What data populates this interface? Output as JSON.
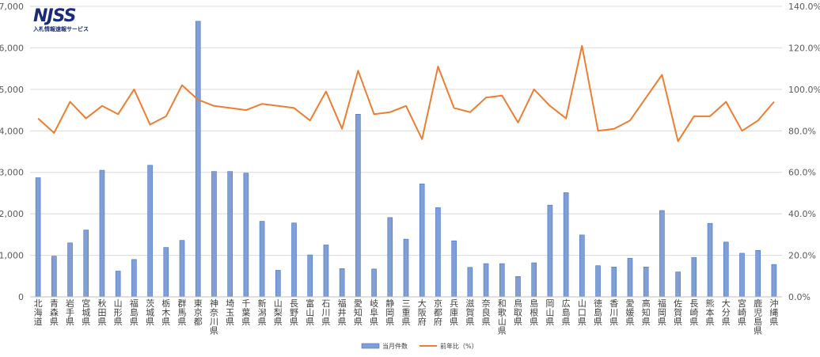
{
  "logo": {
    "text": "NJSS",
    "subtitle": "入札情報速報サービス",
    "colors": {
      "primary": "#1a2b78",
      "accent": "#c00000"
    }
  },
  "legend": {
    "bar_label": "当月件数",
    "line_label": "前年比（%）"
  },
  "colors": {
    "bar_fill": "#7f9fd6",
    "bar_stroke": "#4472c4",
    "line": "#ed7d31",
    "grid": "#d9d9d9"
  },
  "chart_data": {
    "type": "bar",
    "categories": [
      "北海道",
      "青森県",
      "岩手県",
      "宮城県",
      "秋田県",
      "山形県",
      "福島県",
      "茨城県",
      "栃木県",
      "群馬県",
      "東京都",
      "神奈川県",
      "埼玉県",
      "千葉県",
      "新潟県",
      "山梨県",
      "長野県",
      "富山県",
      "石川県",
      "福井県",
      "愛知県",
      "岐阜県",
      "静岡県",
      "三重県",
      "大阪府",
      "京都府",
      "兵庫県",
      "滋賀県",
      "奈良県",
      "和歌山県",
      "鳥取県",
      "島根県",
      "岡山県",
      "広島県",
      "山口県",
      "徳島県",
      "香川県",
      "愛媛県",
      "高知県",
      "福岡県",
      "佐賀県",
      "長崎県",
      "熊本県",
      "大分県",
      "宮崎県",
      "鹿児島県",
      "沖縄県"
    ],
    "series": [
      {
        "name": "当月件数",
        "type": "bar",
        "axis": "left",
        "values": [
          2870,
          980,
          1300,
          1610,
          3050,
          620,
          900,
          3170,
          1190,
          1360,
          6640,
          3020,
          3020,
          2980,
          1820,
          640,
          1780,
          1010,
          1250,
          680,
          4400,
          670,
          1910,
          1390,
          2720,
          2150,
          1350,
          710,
          800,
          800,
          490,
          820,
          2210,
          2510,
          1490,
          750,
          720,
          930,
          720,
          2080,
          600,
          950,
          1770,
          1320,
          1050,
          1120,
          780
        ]
      },
      {
        "name": "前年比（%）",
        "type": "line",
        "axis": "right",
        "values": [
          86,
          79,
          94,
          86,
          92,
          88,
          100,
          83,
          87,
          102,
          95,
          92,
          91,
          90,
          93,
          92,
          91,
          85,
          99,
          81,
          109,
          88,
          89,
          92,
          76,
          111,
          91,
          89,
          96,
          97,
          84,
          100,
          92,
          86,
          121,
          80,
          81,
          85,
          96,
          107,
          75,
          87,
          87,
          94,
          80,
          85,
          94
        ]
      }
    ],
    "y_left": {
      "min": 0,
      "max": 7000,
      "step": 1000,
      "tick_labels": [
        "0",
        "1,000",
        "2,000",
        "3,000",
        "4,000",
        "5,000",
        "6,000",
        "7,000"
      ]
    },
    "y_right": {
      "min": 0,
      "max": 140,
      "step": 20,
      "tick_labels": [
        "0.0%",
        "20.0%",
        "40.0%",
        "60.0%",
        "80.0%",
        "100.0%",
        "120.0%",
        "140.0%"
      ]
    },
    "grid": true,
    "legend_position": "bottom"
  }
}
